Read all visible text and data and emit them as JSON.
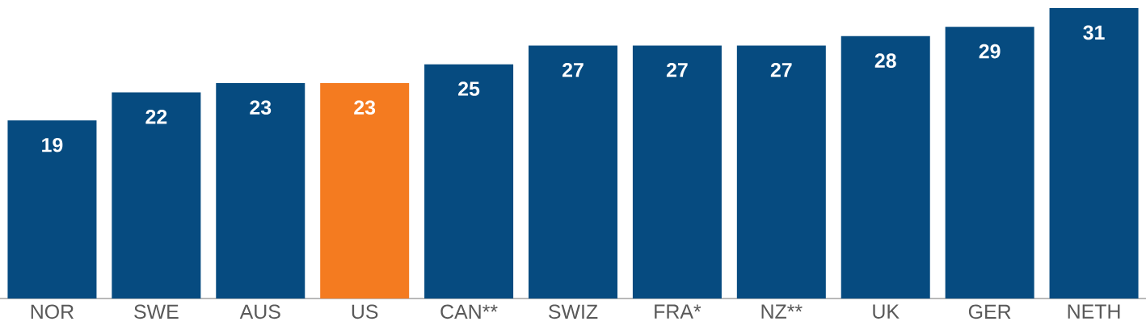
{
  "chart_data": {
    "type": "bar",
    "categories": [
      "NOR",
      "SWE",
      "AUS",
      "US",
      "CAN**",
      "SWIZ",
      "FRA*",
      "NZ**",
      "UK",
      "GER",
      "NETH"
    ],
    "values": [
      19,
      22,
      23,
      23,
      25,
      27,
      27,
      27,
      28,
      29,
      31
    ],
    "colors": [
      "#064b80",
      "#064b80",
      "#064b80",
      "#f47b20",
      "#064b80",
      "#064b80",
      "#064b80",
      "#064b80",
      "#064b80",
      "#064b80",
      "#064b80"
    ],
    "data_labels": true
  }
}
